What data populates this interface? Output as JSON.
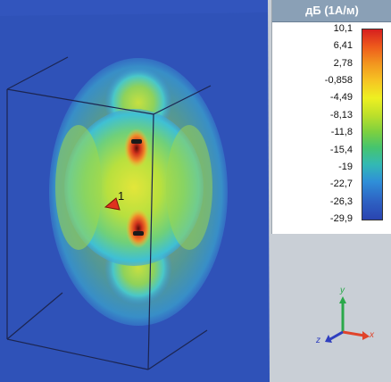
{
  "legend": {
    "title": "дБ (1А/м)",
    "ticks": [
      "10,1",
      "6,41",
      "2,78",
      "-0,858",
      "-4,49",
      "-8,13",
      "-11,8",
      "-15,4",
      "-19",
      "-22,7",
      "-26,3",
      "-29,9"
    ]
  },
  "marker": {
    "label": "1"
  },
  "axes": {
    "y": "y",
    "x": "x",
    "z": "z"
  },
  "colors": {
    "background_field": "#2f52b8",
    "axis_y": "#2aa84a",
    "axis_x": "#e0442b",
    "axis_z": "#2f3fbf"
  }
}
